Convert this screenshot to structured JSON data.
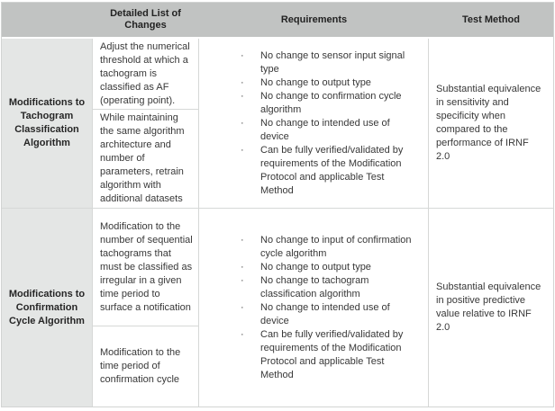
{
  "colors": {
    "header_bg": "#c1c3c2",
    "label_bg": "#e4e6e5",
    "border": "#d6d8d7",
    "text": "#383838"
  },
  "icons": {
    "bullet": "·"
  },
  "table": {
    "column_headers": [
      "",
      "Detailed List of Changes",
      "Requirements",
      "Test Method"
    ],
    "rows": [
      {
        "label": "Modifications to Tachogram Classification Algorithm",
        "changes": [
          "Adjust the numerical threshold at which a tachogram is classified as AF (operating point).",
          "While maintaining the same algorithm architecture and number of parameters, retrain algorithm with additional datasets"
        ],
        "requirements": [
          "No change to sensor input signal type",
          "No change to output type",
          "No change to confirmation cycle algorithm",
          "No change to intended use of device",
          "Can be fully verified/validated by requirements of the Modification Protocol and applicable Test Method"
        ],
        "test_method": "Substantial equivalence in sensitivity and specificity when compared to the performance of IRNF 2.0"
      },
      {
        "label": "Modifications to Confirmation Cycle Algorithm",
        "changes": [
          "Modification to the number of sequential tachograms that must be classified as irregular in a given time period to surface a notification",
          "Modification to the time period of confirmation cycle"
        ],
        "requirements": [
          "No change to input of confirmation cycle algorithm",
          "No change to output type",
          "No change to tachogram classification algorithm",
          "No change to intended use of device",
          "Can be fully verified/validated by requirements of the Modification Protocol and applicable Test Method"
        ],
        "test_method": "Substantial equivalence in positive predictive value relative to IRNF 2.0"
      }
    ]
  }
}
